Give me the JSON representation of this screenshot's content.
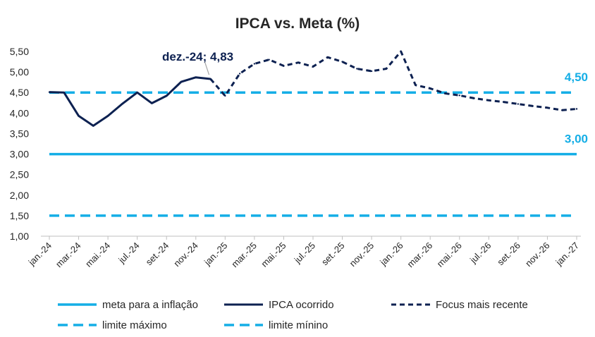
{
  "chart_data": {
    "type": "line",
    "title": "IPCA vs. Meta (%)",
    "xlabel": "",
    "ylabel": "",
    "ylim": [
      1.0,
      5.5
    ],
    "yticks": [
      "1,00",
      "1,50",
      "2,00",
      "2,50",
      "3,00",
      "3,50",
      "4,00",
      "4,50",
      "5,00",
      "5,50"
    ],
    "xticks": [
      "jan.-24",
      "mar.-24",
      "mai.-24",
      "jul.-24",
      "set.-24",
      "nov.-24",
      "jan.-25",
      "mar.-25",
      "mai.-25",
      "jul.-25",
      "set.-25",
      "nov.-25",
      "jan.-26",
      "mar.-26",
      "mai.-26",
      "jul.-26",
      "set.-26",
      "nov.-26",
      "jan.-27"
    ],
    "n_months": 37,
    "series": [
      {
        "name": "meta para a inflação",
        "style": "solid",
        "color": "#14aee6",
        "values": [
          3.0,
          3.0
        ]
      },
      {
        "name": "IPCA ocorrido",
        "style": "solid",
        "color": "#0d2151",
        "values": [
          4.51,
          4.5,
          3.93,
          3.69,
          3.93,
          4.23,
          4.5,
          4.24,
          4.42,
          4.76,
          4.87,
          4.83
        ]
      },
      {
        "name": "Focus mais recente",
        "style": "dashed",
        "color": "#0d2151",
        "values": [
          4.83,
          4.42,
          4.96,
          5.2,
          5.3,
          5.15,
          5.23,
          5.13,
          5.36,
          5.25,
          5.08,
          5.02,
          5.08,
          5.5,
          4.68,
          4.6,
          4.48,
          4.43,
          4.36,
          4.31,
          4.27,
          4.22,
          4.17,
          4.13,
          4.07,
          4.1
        ]
      },
      {
        "name": "limite máximo",
        "style": "dashed",
        "color": "#14aee6",
        "values": [
          4.5,
          4.5
        ]
      },
      {
        "name": "limite mínino",
        "style": "dashed",
        "color": "#14aee6",
        "values": [
          1.5,
          1.5
        ]
      }
    ],
    "annotations": [
      {
        "text": "dez.-24; 4,83",
        "x_month": 11,
        "y": 4.83
      },
      {
        "text": "4,50",
        "y": 4.5
      },
      {
        "text": "3,00",
        "y": 3.0
      }
    ],
    "legend": {
      "placement": "bottom",
      "items": [
        "meta para a inflação",
        "IPCA ocorrido",
        "Focus mais recente",
        "limite máximo",
        "limite mínino"
      ]
    }
  }
}
